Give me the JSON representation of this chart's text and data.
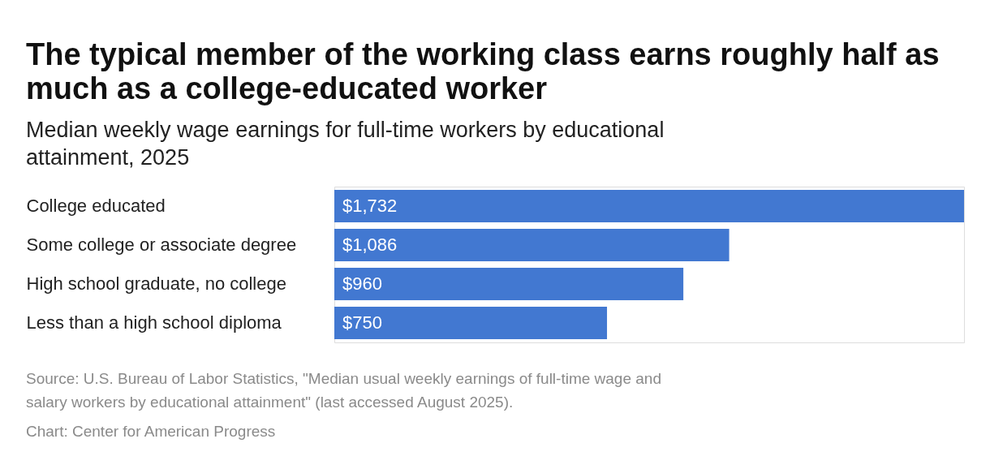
{
  "chart_data": {
    "type": "bar",
    "orientation": "horizontal",
    "title": "The typical member of the working class earns roughly half as much as a college-educated worker",
    "subtitle": "Median weekly wage earnings for full-time workers by educational attainment, 2025",
    "categories": [
      "College educated",
      "Some college or associate degree",
      "High school graduate, no college",
      "Less than a high school diploma"
    ],
    "values": [
      1732,
      1086,
      960,
      750
    ],
    "value_labels": [
      "$1,732",
      "$1,086",
      "$960",
      "$750"
    ],
    "color": "#4278d1",
    "grid": false,
    "annotations": [
      "Source: U.S. Bureau of Labor Statistics, \"Median usual weekly earnings of full-time wage and salary workers by educational attainment\" (last accessed August 2025).",
      "Chart: Center for American Progress"
    ]
  }
}
